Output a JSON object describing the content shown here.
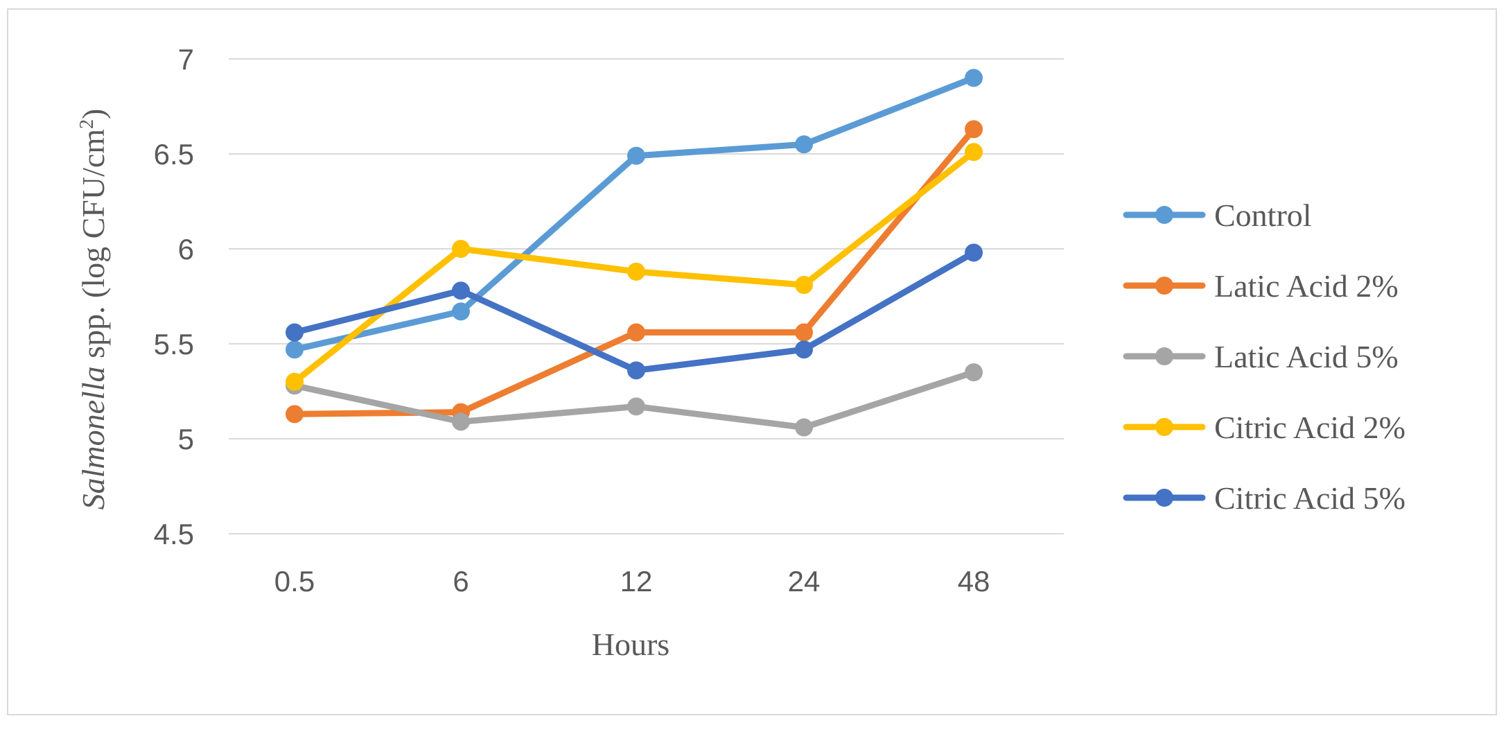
{
  "chart_data": {
    "type": "line",
    "x": [
      "0.5",
      "6",
      "12",
      "24",
      "48"
    ],
    "xlabel": "Hours",
    "ylabel_italic": "Salmonella",
    "ylabel_rest": " spp. (log CFU/cm",
    "ylabel_sup": "2",
    "ylabel_close": ")",
    "ylim": [
      4.5,
      7
    ],
    "yticks": [
      "4.5",
      "5",
      "5.5",
      "6",
      "6.5",
      "7"
    ],
    "ytick_values": [
      4.5,
      5,
      5.5,
      6,
      6.5,
      7
    ],
    "grid": "horizontal",
    "legend_position": "right",
    "series": [
      {
        "name": "Control",
        "color": "#5b9bd5",
        "values": [
          5.47,
          5.67,
          6.49,
          6.55,
          6.9
        ]
      },
      {
        "name": "Latic Acid 2%",
        "color": "#ed7d31",
        "values": [
          5.13,
          5.14,
          5.56,
          5.56,
          6.63
        ]
      },
      {
        "name": "Latic Acid 5%",
        "color": "#a5a5a5",
        "values": [
          5.28,
          5.09,
          5.17,
          5.06,
          5.35
        ]
      },
      {
        "name": "Citric Acid 2%",
        "color": "#ffc000",
        "values": [
          5.3,
          6.0,
          5.88,
          5.81,
          6.51
        ]
      },
      {
        "name": "Citric Acid 5%",
        "color": "#4472c4",
        "values": [
          5.56,
          5.78,
          5.36,
          5.47,
          5.98
        ]
      }
    ]
  }
}
